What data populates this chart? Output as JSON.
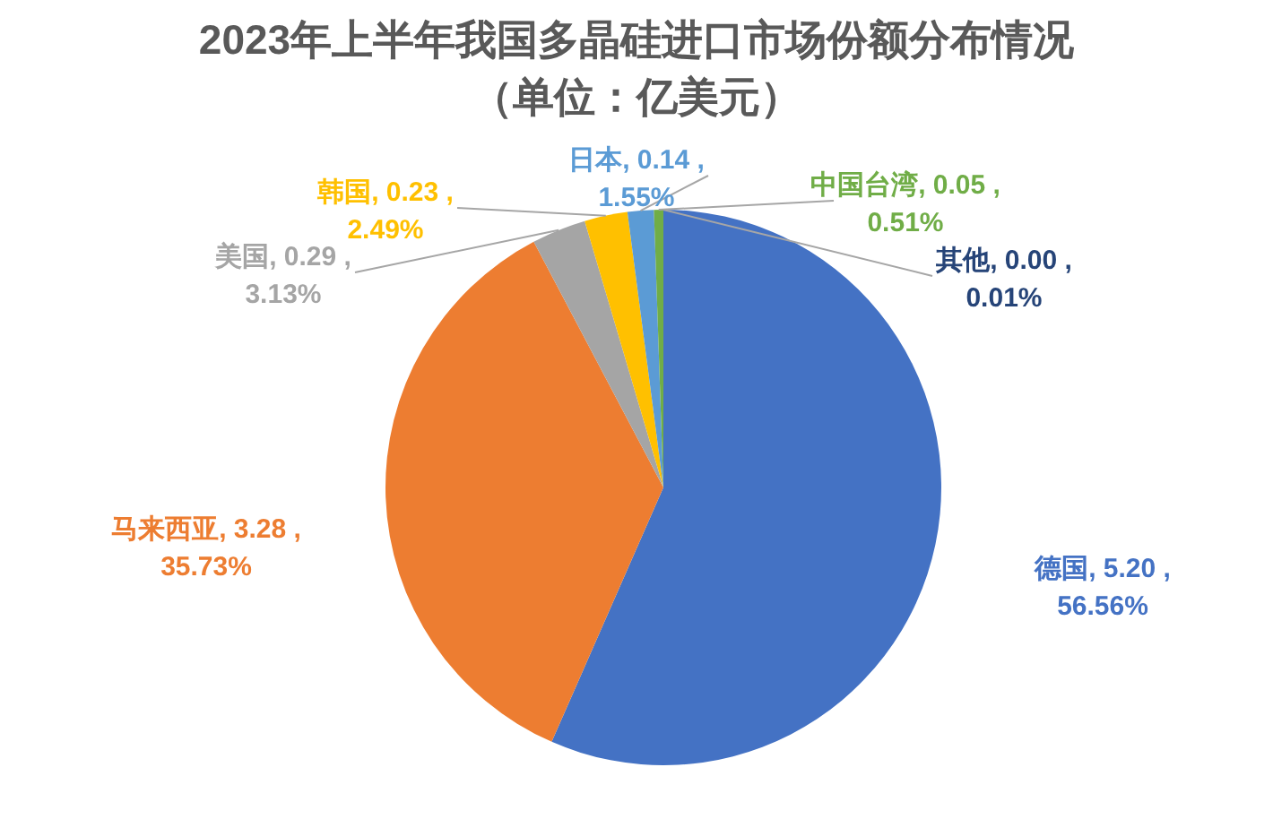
{
  "chart_data": {
    "type": "pie",
    "title": "2023年上半年我国多晶硅进口市场份额分布情况（单位：亿美元）",
    "categories": [
      "德国",
      "马来西亚",
      "美国",
      "韩国",
      "日本",
      "中国台湾",
      "其他"
    ],
    "values": [
      5.2,
      3.28,
      0.29,
      0.23,
      0.14,
      0.05,
      0.0
    ],
    "colors": [
      "#4472c4",
      "#ed7d31",
      "#a5a5a5",
      "#ffc000",
      "#5b9bd5",
      "#70ad47",
      "#264478"
    ],
    "value_labels": [
      ", 5.20 ,\n56.56%",
      ", 3.28 ,\n35.73%",
      ", 0.29 ,\n3.13%",
      ", 0.23 ,\n2.49%",
      ", 0.14 ,\n1.55%",
      ", 0.05 ,\n0.51%",
      ", 0.00 ,\n0.01%"
    ]
  }
}
